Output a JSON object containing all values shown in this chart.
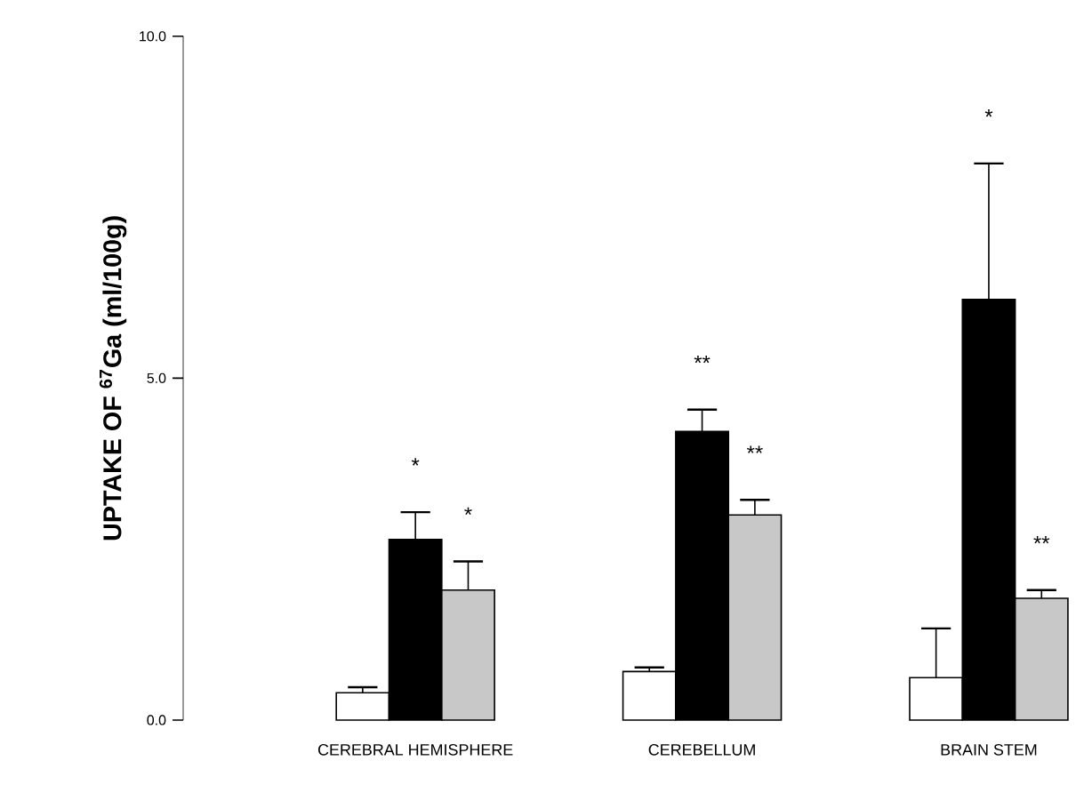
{
  "chart_data": {
    "type": "bar",
    "ylabel": "UPTAKE OF $^{67}$Ga (ml/100g)",
    "categories": [
      "CEREBRAL HEMISPHERE",
      "CEREBELLUM",
      "BRAIN STEM"
    ],
    "series": [
      {
        "color": "#ffffff",
        "values": [
          0.4,
          0.71,
          0.62
        ],
        "errors": [
          [
            0.4,
            0.48
          ],
          [
            0.71,
            0.77
          ],
          [
            0.62,
            1.34
          ]
        ]
      },
      {
        "color": "#000000",
        "values": [
          2.64,
          4.22,
          6.15
        ],
        "errors": [
          [
            2.64,
            3.04
          ],
          [
            4.22,
            4.54
          ],
          [
            6.15,
            8.14
          ]
        ]
      },
      {
        "color": "#c8c8c8",
        "values": [
          1.9,
          3.0,
          1.78
        ],
        "errors": [
          [
            1.9,
            2.32
          ],
          [
            3.0,
            3.22
          ],
          [
            1.78,
            1.9
          ]
        ]
      }
    ],
    "ylim": [
      0,
      10
    ],
    "yticks": [
      {
        "value": 0,
        "label": "0.0"
      },
      {
        "value": 5,
        "label": "5.0"
      },
      {
        "value": 10,
        "label": "10.0"
      }
    ],
    "annotations": [
      "*",
      "*",
      "**",
      "**",
      "*",
      "**"
    ]
  }
}
